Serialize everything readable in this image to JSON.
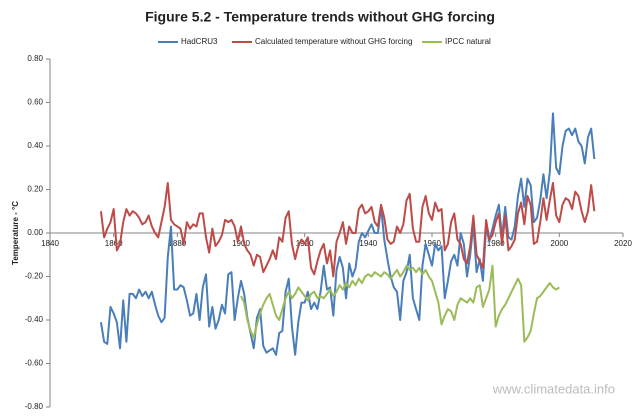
{
  "chart_data": {
    "type": "line",
    "title": "Figure 5.2 - Temperature trends without GHG forcing",
    "ylabel": "Temperature - °C",
    "watermark": "www.climatedata.info",
    "xlim": [
      1840,
      2020
    ],
    "xticks": [
      1840,
      1860,
      1880,
      1900,
      1920,
      1940,
      1960,
      1980,
      2000,
      2020
    ],
    "ylim": [
      -0.8,
      0.8
    ],
    "yticks": [
      {
        "value": -0.8,
        "label": "-0.80"
      },
      {
        "value": -0.6,
        "label": "-0.60"
      },
      {
        "value": -0.4,
        "label": "-0.40"
      },
      {
        "value": -0.2,
        "label": "-0.20"
      },
      {
        "value": 0,
        "label": "0.00"
      },
      {
        "value": 0.2,
        "label": "0.20"
      },
      {
        "value": 0.4,
        "label": "0.40"
      },
      {
        "value": 0.6,
        "label": "0.60"
      },
      {
        "value": 0.8,
        "label": "0.80"
      }
    ],
    "grid": false,
    "legend": "top",
    "x": [
      1856,
      1857,
      1858,
      1859,
      1860,
      1861,
      1862,
      1863,
      1864,
      1865,
      1866,
      1867,
      1868,
      1869,
      1870,
      1871,
      1872,
      1873,
      1874,
      1875,
      1876,
      1877,
      1878,
      1879,
      1880,
      1881,
      1882,
      1883,
      1884,
      1885,
      1886,
      1887,
      1888,
      1889,
      1890,
      1891,
      1892,
      1893,
      1894,
      1895,
      1896,
      1897,
      1898,
      1899,
      1900,
      1901,
      1902,
      1903,
      1904,
      1905,
      1906,
      1907,
      1908,
      1909,
      1910,
      1911,
      1912,
      1913,
      1914,
      1915,
      1916,
      1917,
      1918,
      1919,
      1920,
      1921,
      1922,
      1923,
      1924,
      1925,
      1926,
      1927,
      1928,
      1929,
      1930,
      1931,
      1932,
      1933,
      1934,
      1935,
      1936,
      1937,
      1938,
      1939,
      1940,
      1941,
      1942,
      1943,
      1944,
      1945,
      1946,
      1947,
      1948,
      1949,
      1950,
      1951,
      1952,
      1953,
      1954,
      1955,
      1956,
      1957,
      1958,
      1959,
      1960,
      1961,
      1962,
      1963,
      1964,
      1965,
      1966,
      1967,
      1968,
      1969,
      1970,
      1971,
      1972,
      1973,
      1974,
      1975,
      1976,
      1977,
      1978,
      1979,
      1980,
      1981,
      1982,
      1983,
      1984,
      1985,
      1986,
      1987,
      1988,
      1989,
      1990,
      1991,
      1992,
      1993,
      1994,
      1995,
      1996,
      1997,
      1998,
      1999,
      2000,
      2001,
      2002,
      2003,
      2004,
      2005,
      2006,
      2007,
      2008,
      2009,
      2010,
      2011
    ],
    "series": [
      {
        "name": "HadCRU3",
        "color": "#4a7ebb",
        "values": [
          -0.41,
          -0.5,
          -0.51,
          -0.34,
          -0.37,
          -0.41,
          -0.53,
          -0.31,
          -0.5,
          -0.28,
          -0.28,
          -0.3,
          -0.26,
          -0.29,
          -0.27,
          -0.3,
          -0.27,
          -0.33,
          -0.38,
          -0.41,
          -0.39,
          -0.11,
          0.03,
          -0.26,
          -0.26,
          -0.24,
          -0.25,
          -0.31,
          -0.38,
          -0.37,
          -0.28,
          -0.4,
          -0.25,
          -0.19,
          -0.43,
          -0.34,
          -0.44,
          -0.4,
          -0.33,
          -0.37,
          -0.19,
          -0.18,
          -0.4,
          -0.3,
          -0.22,
          -0.28,
          -0.39,
          -0.46,
          -0.53,
          -0.39,
          -0.35,
          -0.52,
          -0.55,
          -0.54,
          -0.53,
          -0.56,
          -0.46,
          -0.45,
          -0.27,
          -0.21,
          -0.43,
          -0.56,
          -0.41,
          -0.32,
          -0.32,
          -0.27,
          -0.35,
          -0.32,
          -0.35,
          -0.27,
          -0.15,
          -0.26,
          -0.25,
          -0.38,
          -0.17,
          -0.11,
          -0.16,
          -0.3,
          -0.14,
          -0.2,
          -0.16,
          -0.04,
          0.0,
          -0.02,
          0.01,
          0.04,
          0.0,
          0.0,
          0.12,
          -0.03,
          -0.12,
          -0.2,
          -0.25,
          -0.27,
          -0.4,
          -0.22,
          -0.18,
          -0.1,
          -0.3,
          -0.35,
          -0.4,
          -0.15,
          -0.05,
          -0.1,
          -0.15,
          -0.05,
          -0.08,
          -0.06,
          -0.3,
          -0.22,
          -0.13,
          -0.1,
          -0.15,
          0.0,
          -0.05,
          -0.2,
          -0.1,
          0.04,
          -0.18,
          -0.12,
          -0.22,
          0.03,
          -0.04,
          0.02,
          0.08,
          0.13,
          -0.02,
          0.12,
          -0.02,
          -0.03,
          0.03,
          0.17,
          0.25,
          0.12,
          0.25,
          0.22,
          0.05,
          0.07,
          0.15,
          0.27,
          0.16,
          0.28,
          0.55,
          0.3,
          0.27,
          0.4,
          0.47,
          0.48,
          0.45,
          0.48,
          0.42,
          0.4,
          0.32,
          0.44,
          0.48,
          0.34
        ]
      },
      {
        "name": "Calculated temperature without GHG forcing",
        "color": "#be4b48",
        "values": [
          0.1,
          -0.02,
          0.02,
          0.05,
          0.11,
          -0.08,
          -0.05,
          0.05,
          0.11,
          0.08,
          0.1,
          0.09,
          0.07,
          0.04,
          0.05,
          0.08,
          0.03,
          0.0,
          -0.02,
          0.05,
          0.12,
          0.23,
          0.06,
          0.04,
          0.03,
          0.02,
          -0.05,
          0.05,
          0.02,
          0.04,
          0.03,
          0.09,
          0.09,
          -0.02,
          -0.09,
          0.02,
          -0.06,
          -0.04,
          -0.01,
          0.06,
          0.05,
          0.06,
          0.03,
          -0.04,
          0.03,
          -0.05,
          -0.08,
          -0.1,
          -0.15,
          -0.1,
          -0.11,
          -0.18,
          -0.15,
          -0.12,
          -0.08,
          -0.12,
          -0.02,
          -0.04,
          0.07,
          0.1,
          -0.05,
          -0.12,
          -0.06,
          -0.03,
          -0.05,
          -0.02,
          -0.16,
          -0.19,
          -0.13,
          -0.08,
          -0.05,
          -0.14,
          -0.08,
          -0.2,
          -0.04,
          0.0,
          0.05,
          -0.05,
          0.03,
          0.0,
          0.0,
          0.11,
          0.13,
          0.09,
          0.1,
          0.12,
          0.05,
          0.03,
          0.13,
          0.07,
          -0.03,
          -0.05,
          -0.04,
          0.03,
          0.0,
          0.04,
          0.15,
          0.18,
          0.02,
          -0.04,
          -0.04,
          0.12,
          0.17,
          0.09,
          0.06,
          0.14,
          0.1,
          0.11,
          -0.08,
          -0.05,
          0.05,
          0.09,
          -0.03,
          -0.05,
          -0.12,
          -0.14,
          -0.06,
          0.08,
          -0.1,
          -0.13,
          -0.16,
          0.06,
          -0.03,
          -0.01,
          0.05,
          0.09,
          -0.05,
          0.08,
          -0.08,
          -0.06,
          -0.03,
          0.09,
          0.14,
          0.04,
          0.17,
          0.13,
          -0.05,
          -0.04,
          0.05,
          0.16,
          0.06,
          0.15,
          0.23,
          0.08,
          0.05,
          0.13,
          0.16,
          0.15,
          0.11,
          0.19,
          0.17,
          0.1,
          0.05,
          0.1,
          0.22,
          0.1
        ]
      },
      {
        "name": "IPCC natural",
        "color": "#9bbb59",
        "values": [
          null,
          null,
          null,
          null,
          null,
          null,
          null,
          null,
          null,
          null,
          null,
          null,
          null,
          null,
          null,
          null,
          null,
          null,
          null,
          null,
          null,
          null,
          null,
          null,
          null,
          null,
          null,
          null,
          null,
          null,
          null,
          null,
          null,
          null,
          null,
          null,
          null,
          null,
          null,
          null,
          null,
          null,
          null,
          null,
          -0.29,
          -0.32,
          -0.4,
          -0.45,
          -0.48,
          -0.42,
          -0.37,
          -0.33,
          -0.3,
          -0.28,
          -0.33,
          -0.38,
          -0.4,
          -0.35,
          -0.3,
          -0.27,
          -0.3,
          -0.28,
          -0.25,
          -0.27,
          -0.29,
          -0.31,
          -0.28,
          -0.27,
          -0.3,
          -0.29,
          -0.3,
          -0.28,
          -0.26,
          -0.29,
          -0.27,
          -0.24,
          -0.26,
          -0.23,
          -0.25,
          -0.22,
          -0.24,
          -0.21,
          -0.23,
          -0.2,
          -0.19,
          -0.2,
          -0.18,
          -0.19,
          -0.2,
          -0.18,
          -0.19,
          -0.21,
          -0.19,
          -0.17,
          -0.2,
          -0.18,
          -0.15,
          -0.17,
          -0.16,
          -0.18,
          -0.16,
          -0.19,
          -0.17,
          -0.2,
          -0.22,
          -0.27,
          -0.32,
          -0.42,
          -0.38,
          -0.35,
          -0.36,
          -0.4,
          -0.33,
          -0.3,
          -0.31,
          -0.32,
          -0.3,
          -0.32,
          -0.25,
          -0.24,
          -0.34,
          -0.3,
          -0.26,
          -0.15,
          -0.43,
          -0.38,
          -0.35,
          -0.33,
          -0.3,
          -0.27,
          -0.24,
          -0.21,
          -0.24,
          -0.5,
          -0.48,
          -0.45,
          -0.37,
          -0.3,
          -0.29,
          -0.27,
          -0.25,
          -0.23,
          -0.25,
          -0.26,
          -0.25,
          null,
          null,
          null,
          null,
          null,
          null,
          null,
          null,
          null,
          null,
          null
        ]
      }
    ]
  }
}
